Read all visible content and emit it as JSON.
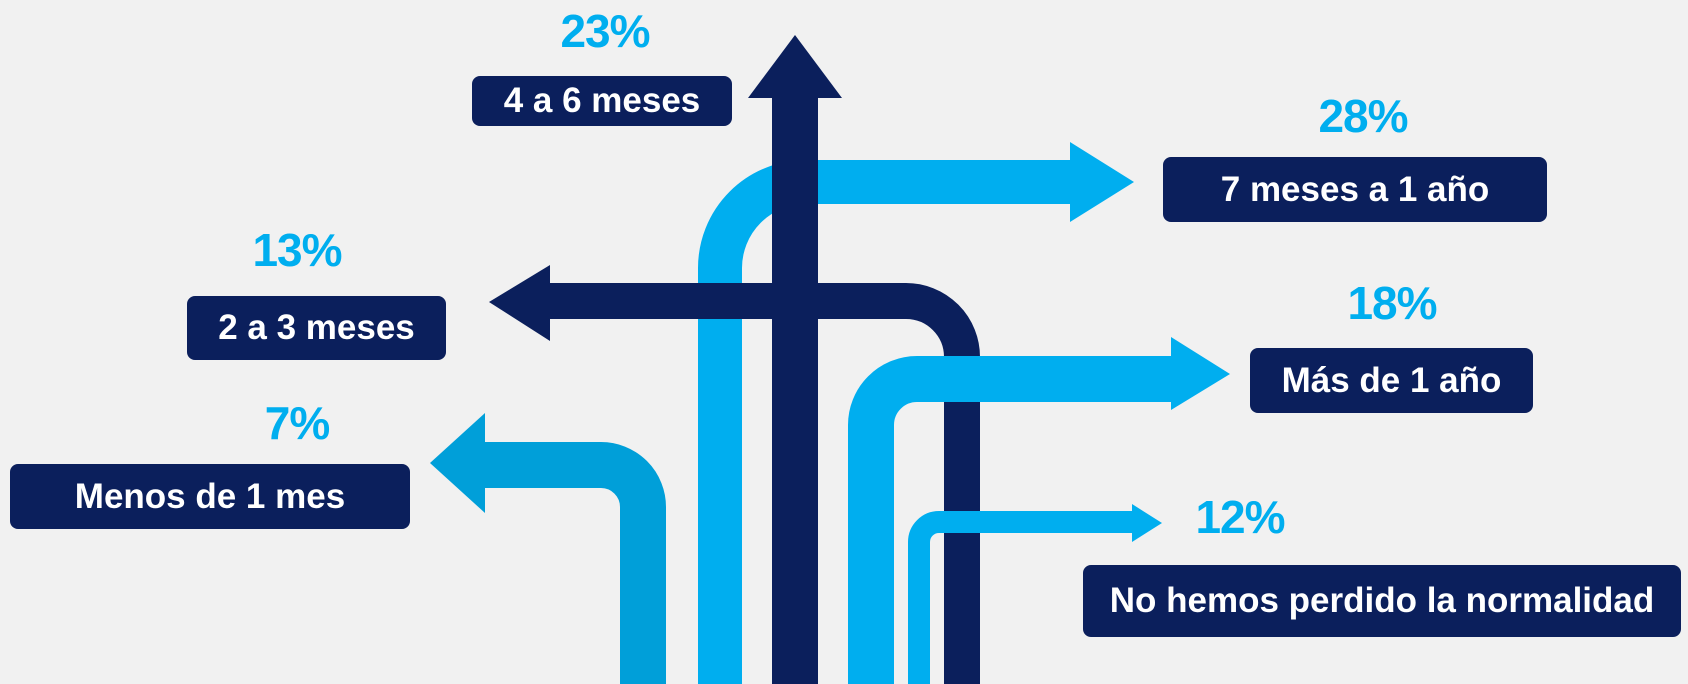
{
  "chart_data": {
    "type": "bar",
    "title": "",
    "categories": [
      "Menos de 1 mes",
      "2 a 3 meses",
      "4 a 6 meses",
      "7 meses a 1 año",
      "Más de 1 año",
      "No hemos perdido la normalidad"
    ],
    "values": [
      7,
      13,
      23,
      28,
      18,
      12
    ],
    "value_labels": [
      "7%",
      "13%",
      "23%",
      "28%",
      "18%",
      "12%"
    ],
    "unit": "%"
  },
  "colors": {
    "background": "#f1f1f1",
    "navy": "#0b1f5c",
    "light_blue": "#00aeef",
    "mid_blue": "#009fd9"
  }
}
